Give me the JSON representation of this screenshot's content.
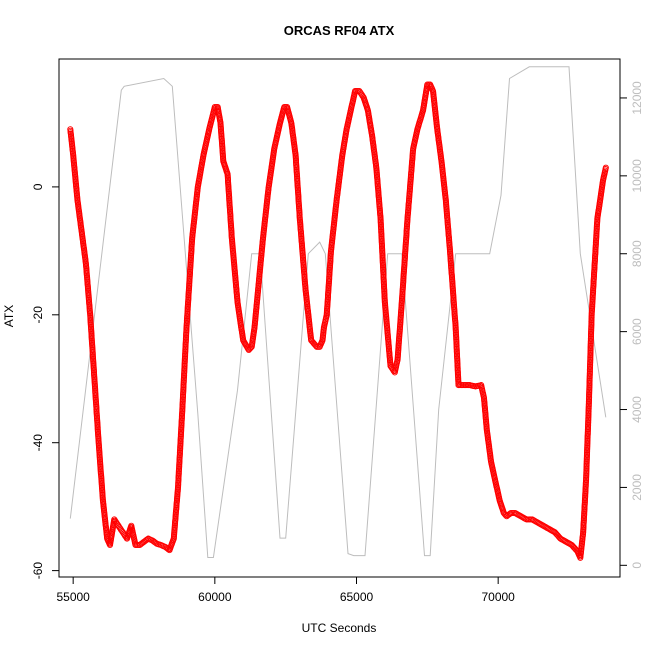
{
  "chart_data": {
    "type": "scatter",
    "title": "ORCAS RF04 ATX",
    "xlabel": "UTC Seconds",
    "ylabel": "ATX",
    "xlim": [
      54500,
      74300
    ],
    "ylim": [
      -61,
      20
    ],
    "y2lim": [
      -300,
      13000
    ],
    "x_ticks": [
      55000,
      60000,
      65000,
      70000
    ],
    "y_ticks": [
      -60,
      -40,
      -20,
      0
    ],
    "y2_ticks": [
      0,
      2000,
      4000,
      6000,
      8000,
      10000,
      12000
    ],
    "grid": false,
    "colors": {
      "atx": "#ff0000",
      "altitude": "#bdbdbd",
      "axis": "#000000"
    },
    "series": [
      {
        "marker": "open-circle",
        "axis": "left",
        "x": [
          54900,
          55000,
          55150,
          55300,
          55450,
          55600,
          55750,
          55900,
          56050,
          56200,
          56300,
          56450,
          56600,
          56750,
          56900,
          57050,
          57200,
          57350,
          57500,
          57650,
          57800,
          57950,
          58100,
          58250,
          58400,
          58550,
          58700,
          58850,
          59000,
          59200,
          59400,
          59600,
          59800,
          60000,
          60100,
          60200,
          60300,
          60450,
          60600,
          60800,
          61000,
          61200,
          61300,
          61400,
          61550,
          61700,
          61900,
          62100,
          62300,
          62450,
          62550,
          62700,
          62850,
          63000,
          63200,
          63400,
          63600,
          63700,
          63800,
          63850,
          63950,
          64100,
          64300,
          64500,
          64650,
          64800,
          64950,
          65100,
          65250,
          65400,
          65550,
          65700,
          65850,
          66000,
          66200,
          66350,
          66450,
          66600,
          66800,
          67000,
          67150,
          67350,
          67500,
          67600,
          67700,
          67850,
          68000,
          68150,
          68300,
          68500,
          68600,
          68700,
          68800,
          69000,
          69200,
          69400,
          69500,
          69600,
          69750,
          69900,
          70050,
          70200,
          70300,
          70450,
          70600,
          70800,
          71000,
          71200,
          71400,
          71600,
          71800,
          72000,
          72200,
          72400,
          72600,
          72800,
          72900,
          73000,
          73100,
          73200,
          73300,
          73500,
          73700,
          73800
        ],
        "y": [
          9,
          5,
          -2,
          -7,
          -12,
          -20,
          -30,
          -40,
          -49,
          -55,
          -56,
          -52,
          -53,
          -54,
          -55,
          -53,
          -56,
          -56,
          -55.5,
          -55,
          -55.3,
          -55.8,
          -56,
          -56.3,
          -56.8,
          -55,
          -47,
          -35,
          -22,
          -8,
          0,
          5,
          9,
          12.5,
          12.5,
          10,
          4,
          2,
          -8,
          -18,
          -24,
          -25.5,
          -25,
          -22,
          -15,
          -8,
          0,
          6,
          10,
          12.5,
          12.5,
          10,
          5,
          -5,
          -16,
          -24,
          -25,
          -25,
          -24,
          -22,
          -20,
          -10,
          -2,
          5,
          9,
          12,
          15,
          15,
          14,
          12,
          8,
          3,
          -5,
          -18,
          -28,
          -29,
          -27,
          -18,
          -5,
          6,
          9,
          12,
          16,
          16,
          15,
          9,
          4,
          -2,
          -10,
          -22,
          -31,
          -31,
          -31,
          -31,
          -31.2,
          -31,
          -33,
          -38,
          -43,
          -46,
          -49,
          -51,
          -51.5,
          -51,
          -51,
          -51.5,
          -52,
          -52,
          -52.5,
          -53,
          -53.5,
          -54,
          -55,
          -55.5,
          -56,
          -57,
          -58,
          -54,
          -46,
          -34,
          -20,
          -5,
          1,
          3
        ]
      },
      {
        "marker": "line",
        "axis": "right",
        "x": [
          54900,
          56700,
          56800,
          58200,
          58500,
          59400,
          59750,
          59950,
          60800,
          61300,
          61600,
          62300,
          62400,
          62500,
          63300,
          63700,
          63900,
          64700,
          64900,
          65300,
          66100,
          66300,
          66600,
          67400,
          67600,
          67900,
          68500,
          68700,
          69500,
          69700,
          70100,
          70400,
          71100,
          72500,
          72900,
          73800
        ],
        "y": [
          1200,
          12200,
          12300,
          12500,
          12300,
          3900,
          200,
          200,
          4500,
          8000,
          8000,
          700,
          700,
          700,
          8000,
          8300,
          8000,
          300,
          250,
          250,
          8000,
          8000,
          8000,
          250,
          250,
          4000,
          8000,
          8000,
          8000,
          8000,
          9500,
          12500,
          12800,
          12800,
          8000,
          3800
        ]
      }
    ]
  }
}
